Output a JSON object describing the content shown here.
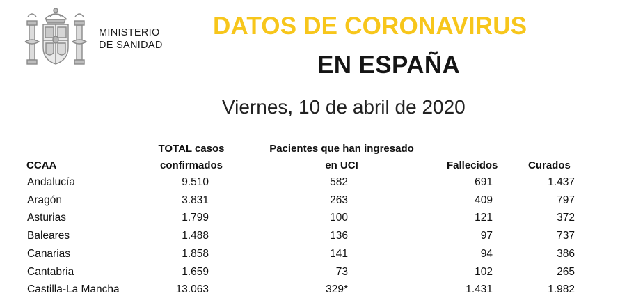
{
  "ministry": {
    "line1": "MINISTERIO",
    "line2": "DE SANIDAD"
  },
  "title": {
    "line1": "DATOS DE CORONAVIRUS",
    "line2": "EN ESPAÑA"
  },
  "date": "Viernes, 10 de abril de 2020",
  "colors": {
    "accent": "#f7c61b",
    "crest": "#9a9a9a"
  },
  "table": {
    "headers": {
      "ccaa": "CCAA",
      "total_line1": "TOTAL casos",
      "total_line2": "confirmados",
      "uci_line1": "Pacientes que han ingresado",
      "uci_line2": "en UCI",
      "fallecidos": "Fallecidos",
      "curados": "Curados"
    },
    "rows": [
      {
        "ccaa": "Andalucía",
        "total": "9.510",
        "uci": "582",
        "fallecidos": "691",
        "curados": "1.437"
      },
      {
        "ccaa": "Aragón",
        "total": "3.831",
        "uci": "263",
        "fallecidos": "409",
        "curados": "797"
      },
      {
        "ccaa": "Asturias",
        "total": "1.799",
        "uci": "100",
        "fallecidos": "121",
        "curados": "372"
      },
      {
        "ccaa": "Baleares",
        "total": "1.488",
        "uci": "136",
        "fallecidos": "97",
        "curados": "737"
      },
      {
        "ccaa": "Canarias",
        "total": "1.858",
        "uci": "141",
        "fallecidos": "94",
        "curados": "386"
      },
      {
        "ccaa": "Cantabria",
        "total": "1.659",
        "uci": "73",
        "fallecidos": "102",
        "curados": "265"
      },
      {
        "ccaa": "Castilla-La Mancha",
        "total": "13.063",
        "uci": "329*",
        "fallecidos": "1.431",
        "curados": "1.982"
      }
    ]
  }
}
